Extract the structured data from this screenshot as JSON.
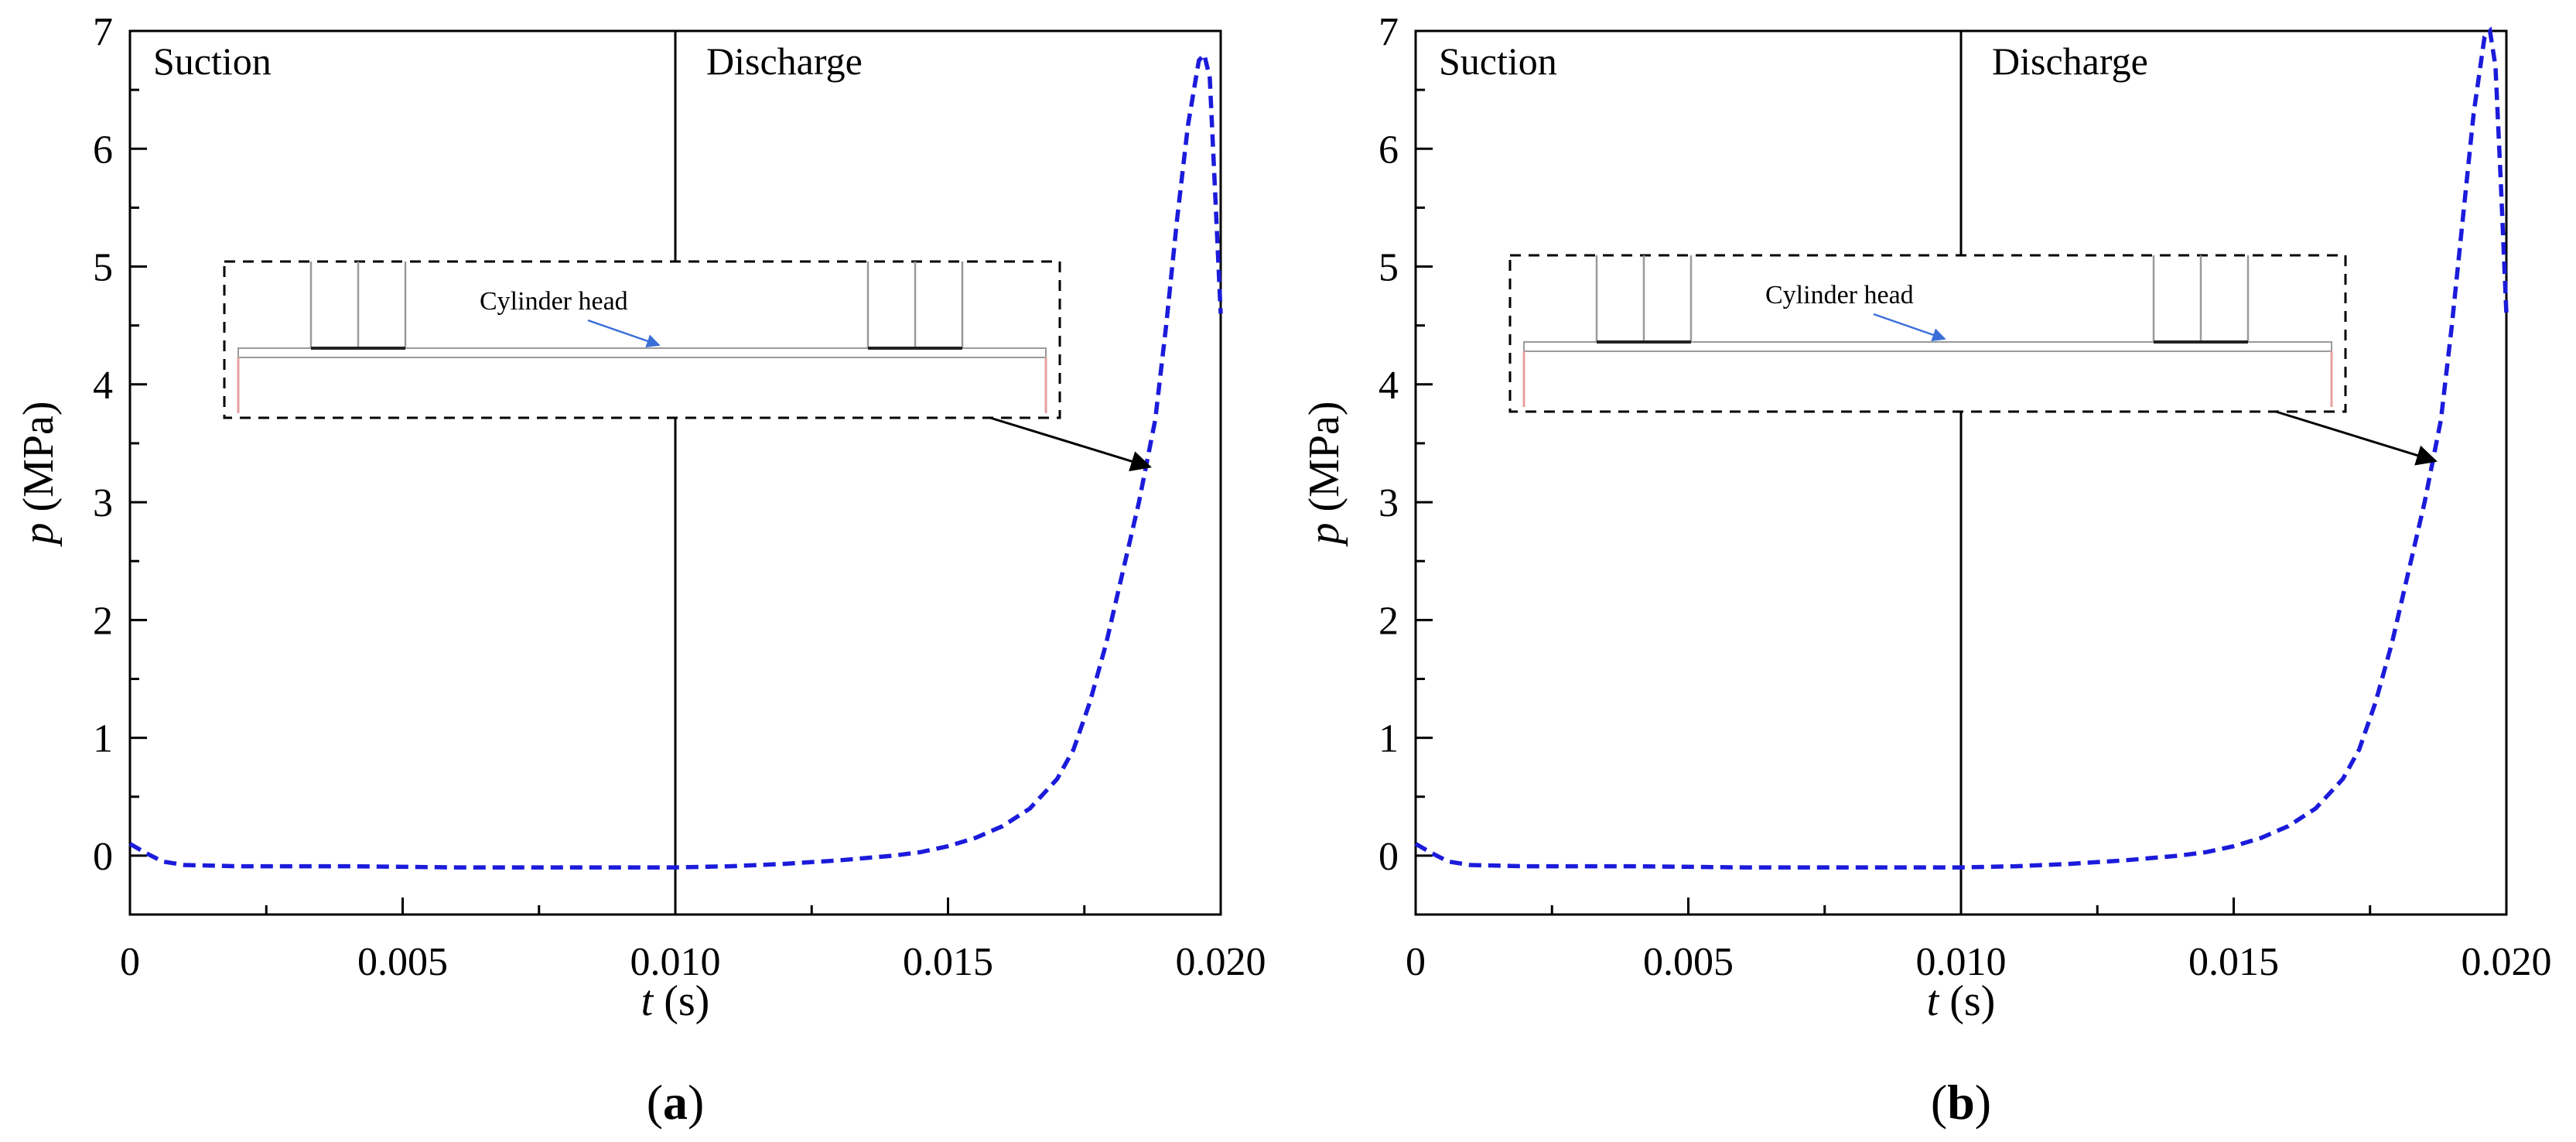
{
  "colors": {
    "series": "#1b1bdb",
    "axis": "#000000",
    "inset_line": "#9a9a9a",
    "inset_edge": "#e8a0a0",
    "inset_arrow": "#3a6fd8"
  },
  "chart_data": [
    {
      "type": "line",
      "panel": "a",
      "caption": "(a)",
      "caption_letter": "a",
      "xlabel": "t (s)",
      "xlabel_var": "t",
      "xlabel_unit": " (s)",
      "ylabel": "p (MPa)",
      "ylabel_var": "p",
      "ylabel_unit": " (MPa)",
      "xlim": [
        0,
        0.02
      ],
      "ylim": [
        -0.5,
        7
      ],
      "x_ticks": [
        0,
        0.005,
        0.01,
        0.015,
        0.02
      ],
      "x_tick_labels": [
        "0",
        "0.005",
        "0.010",
        "0.015",
        "0.020"
      ],
      "y_ticks": [
        0,
        1,
        2,
        3,
        4,
        5,
        6,
        7
      ],
      "y_tick_labels": [
        "0",
        "1",
        "2",
        "3",
        "4",
        "5",
        "6",
        "7"
      ],
      "divider_x": 0.01,
      "regions": [
        "Suction",
        "Discharge"
      ],
      "inset_label": "Cylinder head",
      "inset_arrow_target": [
        0.0187,
        3.3
      ],
      "series": [
        {
          "name": "pressure",
          "style": "dashed",
          "x": [
            0,
            0.0003,
            0.0006,
            0.001,
            0.002,
            0.004,
            0.006,
            0.008,
            0.01,
            0.011,
            0.012,
            0.013,
            0.014,
            0.0145,
            0.015,
            0.0155,
            0.016,
            0.0165,
            0.017,
            0.0173,
            0.0176,
            0.0179,
            0.0182,
            0.0185,
            0.0188,
            0.019,
            0.0192,
            0.0194,
            0.0196,
            0.0197,
            0.0198,
            0.0199,
            0.02
          ],
          "y": [
            0.1,
            0.02,
            -0.05,
            -0.08,
            -0.09,
            -0.09,
            -0.1,
            -0.1,
            -0.1,
            -0.09,
            -0.07,
            -0.04,
            0.0,
            0.03,
            0.08,
            0.15,
            0.25,
            0.4,
            0.65,
            0.9,
            1.3,
            1.8,
            2.4,
            3.0,
            3.7,
            4.5,
            5.4,
            6.2,
            6.75,
            6.8,
            6.6,
            5.6,
            4.6
          ]
        }
      ]
    },
    {
      "type": "line",
      "panel": "b",
      "caption": "(b)",
      "caption_letter": "b",
      "xlabel": "t (s)",
      "xlabel_var": "t",
      "xlabel_unit": " (s)",
      "ylabel": "p (MPa)",
      "ylabel_var": "p",
      "ylabel_unit": " (MPa)",
      "xlim": [
        0,
        0.02
      ],
      "ylim": [
        -0.5,
        7
      ],
      "x_ticks": [
        0,
        0.005,
        0.01,
        0.015,
        0.02
      ],
      "x_tick_labels": [
        "0",
        "0.005",
        "0.010",
        "0.015",
        "0.020"
      ],
      "y_ticks": [
        0,
        1,
        2,
        3,
        4,
        5,
        6,
        7
      ],
      "y_tick_labels": [
        "0",
        "1",
        "2",
        "3",
        "4",
        "5",
        "6",
        "7"
      ],
      "divider_x": 0.01,
      "regions": [
        "Suction",
        "Discharge"
      ],
      "inset_label": "Cylinder head",
      "inset_arrow_target": [
        0.0187,
        3.35
      ],
      "series": [
        {
          "name": "pressure",
          "style": "dashed",
          "x": [
            0,
            0.0003,
            0.0006,
            0.001,
            0.002,
            0.004,
            0.006,
            0.008,
            0.01,
            0.011,
            0.012,
            0.013,
            0.014,
            0.0145,
            0.015,
            0.0155,
            0.016,
            0.0165,
            0.017,
            0.0173,
            0.0176,
            0.0179,
            0.0182,
            0.0185,
            0.0188,
            0.019,
            0.0192,
            0.0194,
            0.0196,
            0.0197,
            0.0198,
            0.0199,
            0.02
          ],
          "y": [
            0.1,
            0.02,
            -0.05,
            -0.08,
            -0.09,
            -0.09,
            -0.1,
            -0.1,
            -0.1,
            -0.09,
            -0.07,
            -0.04,
            0.0,
            0.03,
            0.08,
            0.15,
            0.25,
            0.4,
            0.65,
            0.9,
            1.3,
            1.8,
            2.4,
            3.0,
            3.7,
            4.5,
            5.4,
            6.3,
            6.95,
            7.0,
            6.7,
            5.7,
            4.6
          ]
        }
      ]
    }
  ]
}
